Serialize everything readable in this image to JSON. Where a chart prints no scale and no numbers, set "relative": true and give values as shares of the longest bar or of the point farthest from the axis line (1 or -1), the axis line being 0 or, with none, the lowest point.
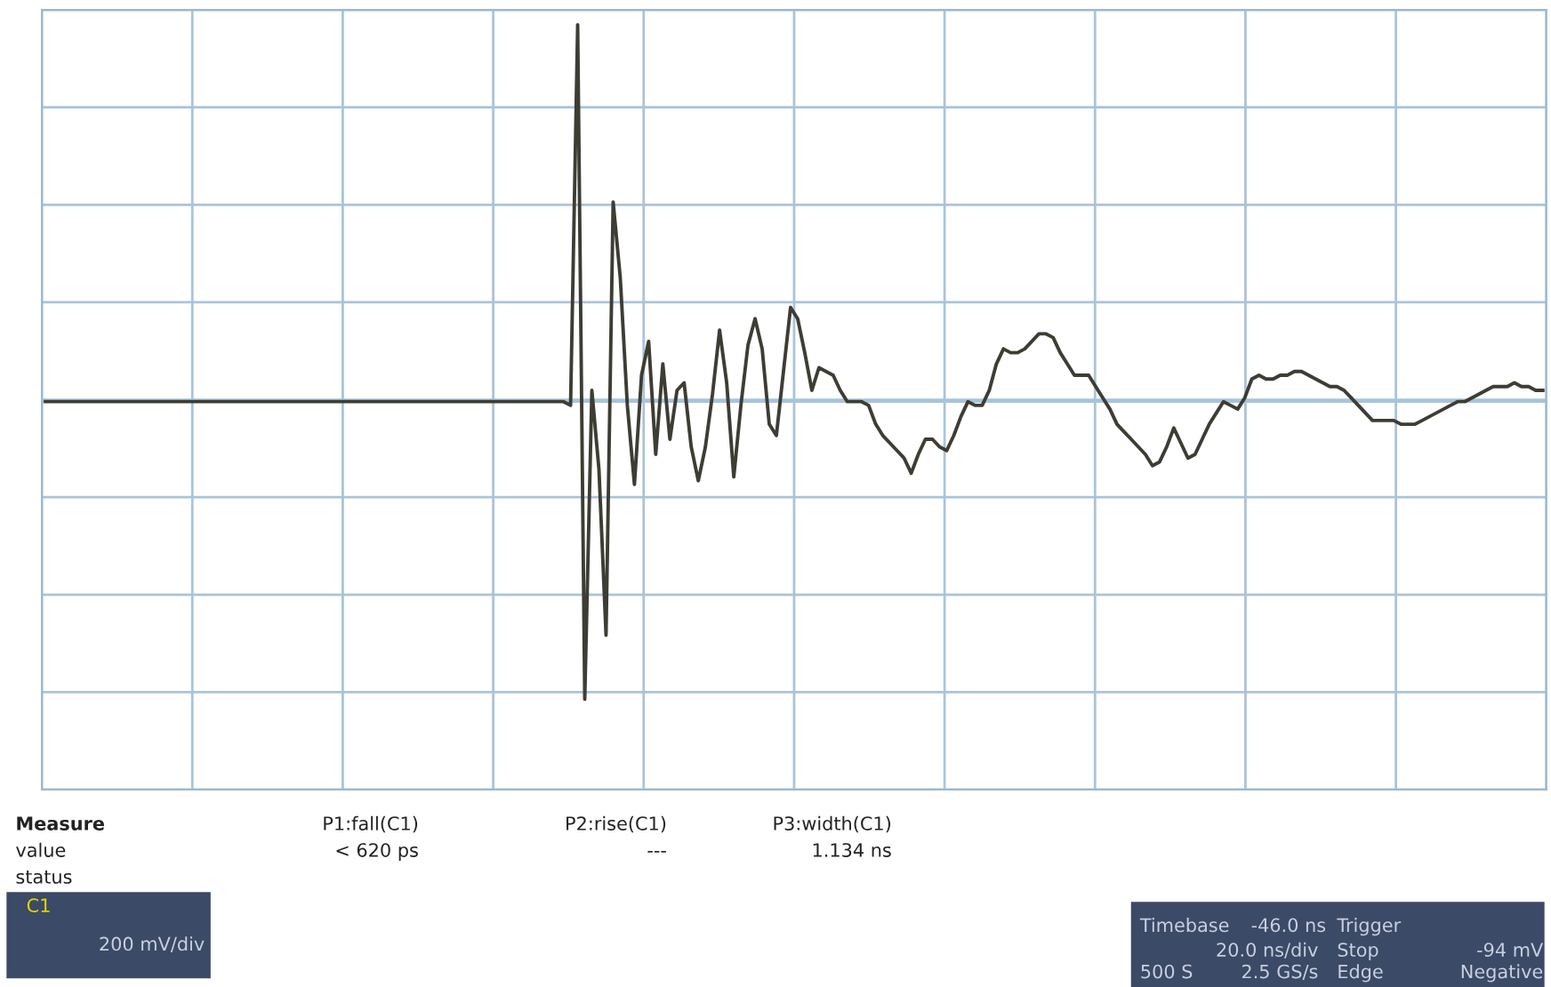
{
  "chart_data": {
    "type": "line",
    "relative": true,
    "grid": true,
    "categories": [
      null,
      null,
      null,
      null,
      null,
      null,
      null,
      null,
      null,
      null,
      null,
      null,
      null,
      null,
      null,
      null,
      null,
      null,
      null,
      null,
      null,
      null,
      null,
      null,
      null,
      null,
      null,
      null,
      null,
      null,
      null,
      null,
      null,
      null,
      null,
      null,
      null,
      null,
      null,
      null,
      null,
      null,
      null,
      null,
      null,
      null,
      null,
      null,
      null,
      null,
      null,
      null,
      null,
      null,
      null,
      null,
      null,
      null,
      null,
      null,
      null,
      null,
      null,
      null,
      null,
      null,
      null,
      null,
      null,
      null,
      null,
      null,
      null,
      null,
      null,
      null,
      null,
      null,
      null,
      null,
      null,
      null,
      null,
      null,
      null,
      null,
      null,
      null,
      null,
      null,
      null,
      null,
      null,
      null,
      null,
      null,
      null,
      null,
      null,
      null,
      null,
      null,
      null,
      null,
      null,
      null,
      null,
      null,
      null,
      null,
      null,
      null,
      null,
      null,
      null,
      null,
      null,
      null,
      null,
      null,
      null,
      null,
      null,
      null,
      null,
      null,
      null,
      null,
      null,
      null,
      null,
      null,
      null,
      null,
      null,
      null,
      null,
      null,
      null,
      null,
      null,
      null,
      null,
      null,
      null,
      null,
      null,
      null,
      null,
      null,
      null,
      null,
      null,
      null,
      null,
      null,
      null,
      null,
      null,
      null,
      null,
      null,
      null,
      null,
      null,
      null,
      null,
      null,
      null,
      null,
      null,
      null,
      null,
      null,
      null,
      null,
      null,
      null,
      null,
      null,
      null,
      null,
      null,
      null,
      null,
      null,
      null,
      null,
      null,
      null,
      null,
      null,
      null,
      null,
      null,
      null,
      null,
      null,
      null,
      null,
      null,
      null,
      null,
      null,
      null,
      null,
      null,
      null,
      null,
      null,
      null,
      null
    ],
    "series": [
      {
        "color": "#3d3d33",
        "values": [
          0,
          0,
          0,
          0,
          0,
          0,
          0,
          0,
          0,
          0,
          0,
          0,
          0,
          0,
          0,
          0,
          0,
          0,
          0,
          0,
          0,
          0,
          0,
          0,
          0,
          0,
          0,
          0,
          0,
          0,
          0,
          0,
          0,
          0,
          0,
          0,
          0,
          0,
          0,
          0,
          0,
          0,
          0,
          0,
          0,
          0,
          0,
          0,
          0,
          0,
          0,
          0,
          0,
          0,
          0,
          0,
          0,
          0,
          0,
          0,
          0,
          0,
          0,
          0,
          0,
          0,
          0,
          0,
          0,
          0,
          0,
          0,
          0,
          0,
          -0.01,
          1.0,
          -0.79,
          0.03,
          -0.18,
          -0.62,
          0.53,
          0.33,
          -0.01,
          -0.22,
          0.07,
          0.16,
          -0.14,
          0.1,
          -0.1,
          0.03,
          0.05,
          -0.12,
          -0.21,
          -0.12,
          0.02,
          0.19,
          0.05,
          -0.2,
          -0.01,
          0.15,
          0.22,
          0.14,
          -0.06,
          -0.09,
          0.08,
          0.25,
          0.22,
          0.13,
          0.03,
          0.09,
          0.08,
          0.07,
          0.03,
          0,
          0,
          0,
          -0.01,
          -0.06,
          -0.09,
          -0.11,
          -0.13,
          -0.15,
          -0.19,
          -0.14,
          -0.1,
          -0.1,
          -0.12,
          -0.13,
          -0.09,
          -0.04,
          0,
          -0.01,
          -0.01,
          0.03,
          0.1,
          0.14,
          0.13,
          0.13,
          0.14,
          0.16,
          0.18,
          0.18,
          0.17,
          0.13,
          0.1,
          0.07,
          0.07,
          0.07,
          0.04,
          0.01,
          -0.02,
          -0.06,
          -0.08,
          -0.1,
          -0.12,
          -0.14,
          -0.17,
          -0.16,
          -0.12,
          -0.07,
          -0.11,
          -0.15,
          -0.14,
          -0.1,
          -0.06,
          -0.03,
          0,
          -0.01,
          -0.02,
          0.01,
          0.06,
          0.07,
          0.06,
          0.06,
          0.07,
          0.07,
          0.08,
          0.08,
          0.07,
          0.06,
          0.05,
          0.04,
          0.04,
          0.03,
          0.01,
          -0.01,
          -0.03,
          -0.05,
          -0.05,
          -0.05,
          -0.05,
          -0.06,
          -0.06,
          -0.06,
          -0.05,
          -0.04,
          -0.03,
          -0.02,
          -0.01,
          0,
          0,
          0.01,
          0.02,
          0.03,
          0.04,
          0.04,
          0.04,
          0.05,
          0.04,
          0.04,
          0.03,
          0.03
        ]
      }
    ],
    "annotations": [
      "Measure",
      "value",
      "status",
      "P1:fall(C1)",
      "< 620 ps",
      "P2:rise(C1)",
      "---",
      "P3:width(C1)",
      "1.134 ns",
      "C1",
      "200 mV/div",
      "Timebase",
      "-46.0 ns",
      "20.0 ns/div",
      "500 S",
      "2.5 GS/s",
      "Trigger",
      "Stop",
      "-94 mV",
      "Edge",
      "Negative"
    ]
  }
}
